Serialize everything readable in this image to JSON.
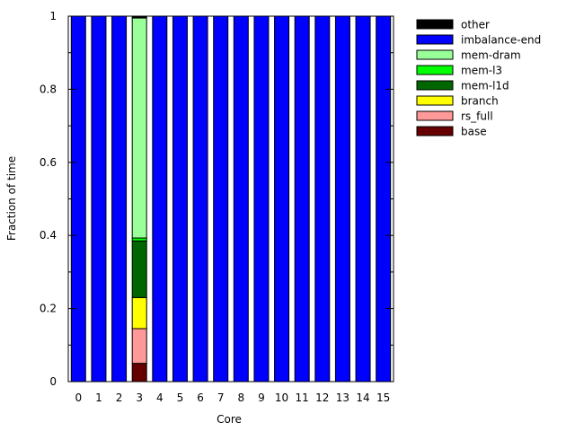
{
  "chart_data": {
    "type": "bar",
    "stacked": true,
    "xlabel": "Core",
    "ylabel": "Fraction of time",
    "ylim": [
      0,
      1
    ],
    "yticks": [
      "0",
      "0.2",
      "0.4",
      "0.6",
      "0.8",
      "1"
    ],
    "categories": [
      "0",
      "1",
      "2",
      "3",
      "4",
      "5",
      "6",
      "7",
      "8",
      "9",
      "10",
      "11",
      "12",
      "13",
      "14",
      "15"
    ],
    "grid": false,
    "legend_position": "right",
    "series": [
      {
        "name": "base",
        "color": "#660000",
        "values": [
          0,
          0,
          0,
          0.05,
          0,
          0,
          0,
          0,
          0,
          0,
          0,
          0,
          0,
          0,
          0,
          0
        ]
      },
      {
        "name": "rs_full",
        "color": "#ff9999",
        "values": [
          0,
          0,
          0,
          0.095,
          0,
          0,
          0,
          0,
          0,
          0,
          0,
          0,
          0,
          0,
          0,
          0
        ]
      },
      {
        "name": "branch",
        "color": "#ffff00",
        "values": [
          0,
          0,
          0,
          0.085,
          0,
          0,
          0,
          0,
          0,
          0,
          0,
          0,
          0,
          0,
          0,
          0
        ]
      },
      {
        "name": "mem-l1d",
        "color": "#006600",
        "values": [
          0,
          0,
          0,
          0.155,
          0,
          0,
          0,
          0,
          0,
          0,
          0,
          0,
          0,
          0,
          0,
          0
        ]
      },
      {
        "name": "mem-l3",
        "color": "#00ff00",
        "values": [
          0,
          0,
          0,
          0.008,
          0,
          0,
          0,
          0,
          0,
          0,
          0,
          0,
          0,
          0,
          0,
          0
        ]
      },
      {
        "name": "mem-dram",
        "color": "#99ff99",
        "values": [
          0,
          0,
          0,
          0.602,
          0,
          0,
          0,
          0,
          0,
          0,
          0,
          0,
          0,
          0,
          0,
          0
        ]
      },
      {
        "name": "imbalance-end",
        "color": "#0000ff",
        "values": [
          1,
          1,
          1,
          0,
          1,
          1,
          1,
          1,
          1,
          1,
          1,
          1,
          1,
          1,
          1,
          1
        ]
      },
      {
        "name": "other",
        "color": "#000000",
        "values": [
          0,
          0,
          0,
          0.005,
          0,
          0,
          0,
          0,
          0,
          0,
          0,
          0,
          0,
          0,
          0,
          0
        ]
      }
    ],
    "legend_order": [
      "other",
      "imbalance-end",
      "mem-dram",
      "mem-l3",
      "mem-l1d",
      "branch",
      "rs_full",
      "base"
    ]
  }
}
